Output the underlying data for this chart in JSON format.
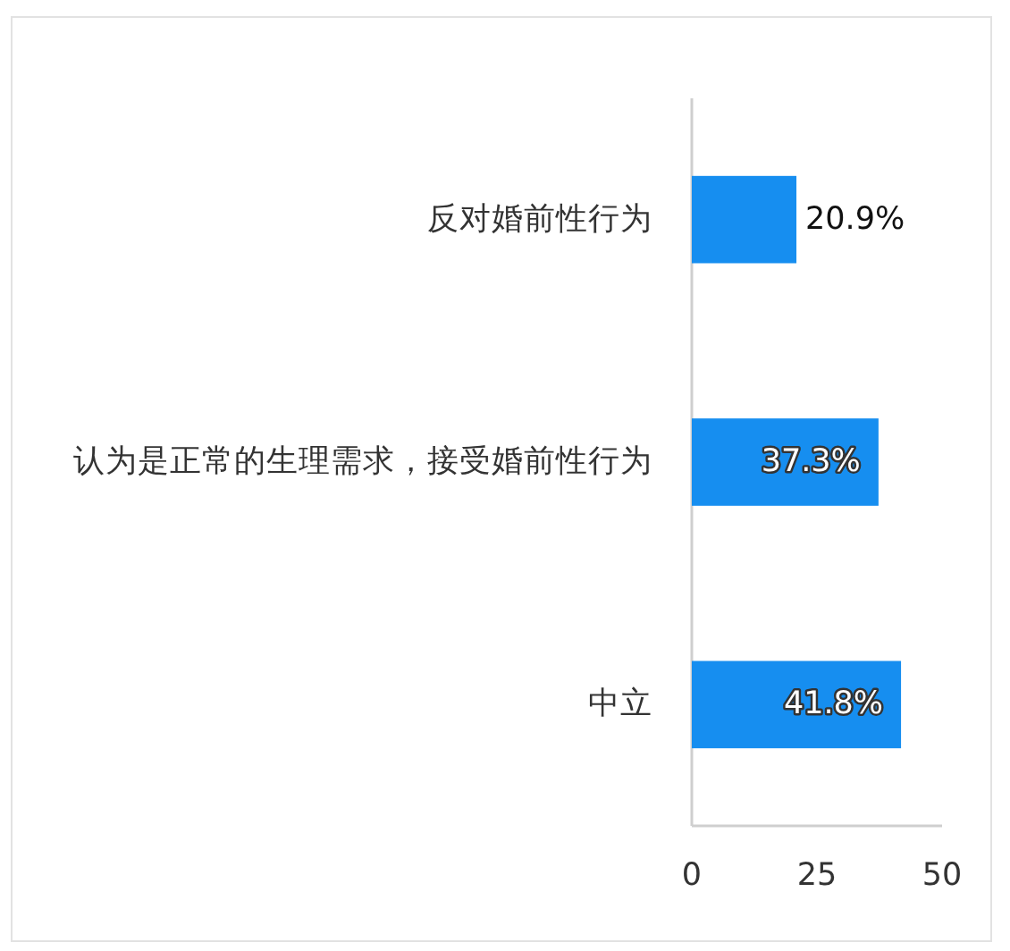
{
  "chart_data": {
    "type": "bar",
    "orientation": "horizontal",
    "categories": [
      "反对婚前性行为",
      "认为是正常的生理需求，接受婚前性行为",
      "中立"
    ],
    "values": [
      20.9,
      37.3,
      41.8
    ],
    "value_labels": [
      "20.9%",
      "37.3%",
      "41.8%"
    ],
    "color": "#168ef0",
    "xlim": [
      0,
      50
    ],
    "xticks": [
      0,
      25,
      50
    ]
  }
}
